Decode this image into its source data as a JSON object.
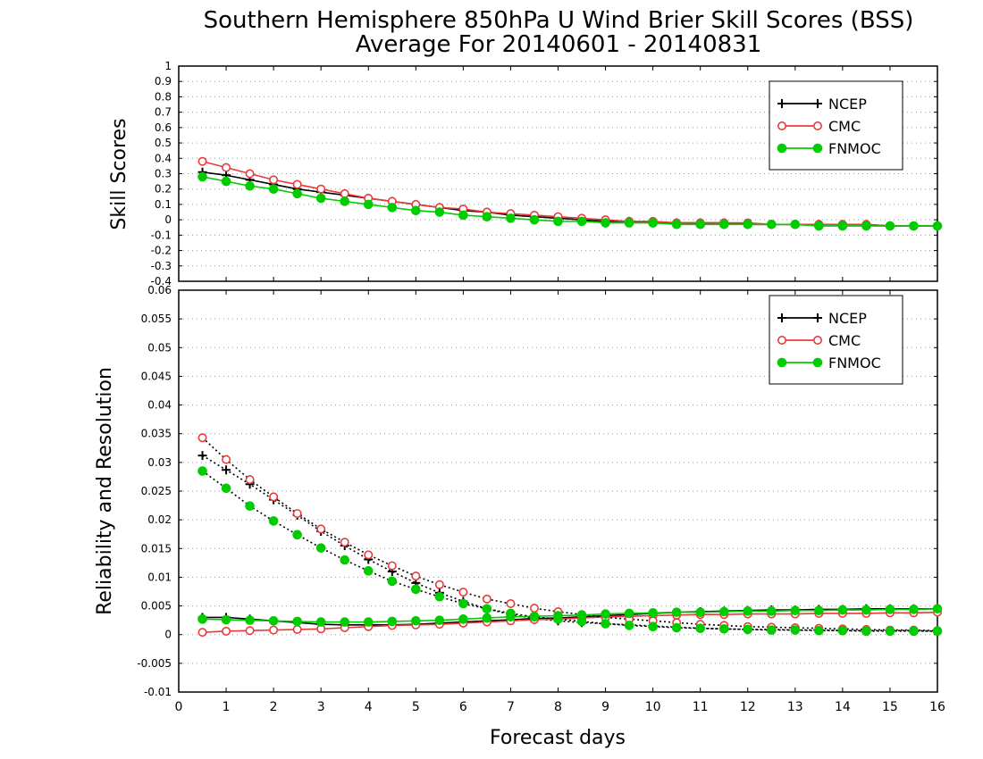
{
  "title_line1": "Southern Hemisphere 850hPa U Wind Brier Skill Scores (BSS)",
  "title_line2": "Average For 20140601 - 20140831",
  "colors": {
    "NCEP": "#000000",
    "CMC": "#e83a3a",
    "FNMOC": "#00cc00"
  },
  "chart_data": [
    {
      "type": "line",
      "panel": "top",
      "ylabel": "Skill Scores",
      "xlabel": "Forecast days",
      "xlim": [
        0,
        16
      ],
      "ylim": [
        -0.4,
        1
      ],
      "x_ticks": [
        "0",
        "1",
        "2",
        "3",
        "4",
        "5",
        "6",
        "7",
        "8",
        "9",
        "10",
        "11",
        "12",
        "13",
        "14",
        "15",
        "16"
      ],
      "y_ticks": [
        "1",
        "0.9",
        "0.8",
        "0.7",
        "0.6",
        "0.5",
        "0.4",
        "0.3",
        "0.2",
        "0.1",
        "0",
        "-0.1",
        "-0.2",
        "-0.3",
        "-0.4"
      ],
      "grid": true,
      "legend": [
        "NCEP",
        "CMC",
        "FNMOC"
      ],
      "legend_position": "top-right",
      "x": [
        0.5,
        1,
        1.5,
        2,
        2.5,
        3,
        3.5,
        4,
        4.5,
        5,
        5.5,
        6,
        6.5,
        7,
        7.5,
        8,
        8.5,
        9,
        9.5,
        10,
        10.5,
        11,
        11.5,
        12,
        12.5,
        13,
        13.5,
        14,
        14.5,
        15,
        15.5,
        16
      ],
      "series": [
        {
          "name": "NCEP",
          "marker": "plus",
          "line": "solid",
          "values": [
            0.31,
            0.29,
            0.26,
            0.23,
            0.2,
            0.18,
            0.16,
            0.14,
            0.12,
            0.1,
            0.08,
            0.06,
            0.05,
            0.03,
            0.02,
            0.01,
            0.0,
            -0.01,
            -0.01,
            -0.02,
            -0.02,
            -0.02,
            -0.02,
            -0.03,
            -0.03,
            -0.03,
            -0.03,
            -0.03,
            -0.03,
            -0.04,
            -0.04,
            -0.04
          ]
        },
        {
          "name": "CMC",
          "marker": "open-circle",
          "line": "solid",
          "values": [
            0.38,
            0.34,
            0.3,
            0.26,
            0.23,
            0.2,
            0.17,
            0.14,
            0.12,
            0.1,
            0.08,
            0.07,
            0.05,
            0.04,
            0.03,
            0.02,
            0.01,
            0.0,
            -0.01,
            -0.01,
            -0.02,
            -0.02,
            -0.02,
            -0.02,
            -0.03,
            -0.03,
            -0.03,
            -0.03,
            -0.03,
            -0.04,
            -0.04,
            -0.04
          ]
        },
        {
          "name": "FNMOC",
          "marker": "filled-circle",
          "line": "solid",
          "values": [
            0.28,
            0.25,
            0.22,
            0.2,
            0.17,
            0.14,
            0.12,
            0.1,
            0.08,
            0.06,
            0.05,
            0.03,
            0.02,
            0.01,
            0.0,
            -0.01,
            -0.01,
            -0.02,
            -0.02,
            -0.02,
            -0.03,
            -0.03,
            -0.03,
            -0.03,
            -0.03,
            -0.03,
            -0.04,
            -0.04,
            -0.04,
            -0.04,
            -0.04,
            -0.04
          ]
        }
      ]
    },
    {
      "type": "line",
      "panel": "bottom",
      "ylabel": "Reliability and Resolution",
      "xlabel": "Forecast days",
      "xlim": [
        0,
        16
      ],
      "ylim": [
        -0.01,
        0.06
      ],
      "x_ticks": [
        "0",
        "1",
        "2",
        "3",
        "4",
        "5",
        "6",
        "7",
        "8",
        "9",
        "10",
        "11",
        "12",
        "13",
        "14",
        "15",
        "16"
      ],
      "y_ticks": [
        "0.06",
        "0.055",
        "0.05",
        "0.045",
        "0.04",
        "0.035",
        "0.03",
        "0.025",
        "0.02",
        "0.015",
        "0.01",
        "0.005",
        "0",
        "-0.005",
        "-0.01"
      ],
      "grid": true,
      "legend": [
        "NCEP",
        "CMC",
        "FNMOC"
      ],
      "legend_position": "top-right",
      "x": [
        0.5,
        1,
        1.5,
        2,
        2.5,
        3,
        3.5,
        4,
        4.5,
        5,
        5.5,
        6,
        6.5,
        7,
        7.5,
        8,
        8.5,
        9,
        9.5,
        10,
        10.5,
        11,
        11.5,
        12,
        12.5,
        13,
        13.5,
        14,
        14.5,
        15,
        15.5,
        16
      ],
      "series": [
        {
          "name": "NCEP",
          "marker": "plus",
          "line": "solid",
          "values": [
            0.003,
            0.003,
            0.0027,
            0.0024,
            0.0021,
            0.0018,
            0.0017,
            0.0017,
            0.0017,
            0.0018,
            0.002,
            0.0022,
            0.0024,
            0.0026,
            0.0028,
            0.0029,
            0.0031,
            0.0033,
            0.0035,
            0.0037,
            0.0039,
            0.004,
            0.0041,
            0.0042,
            0.0043,
            0.0043,
            0.0044,
            0.0044,
            0.0045,
            0.0045,
            0.0045,
            0.0045
          ]
        },
        {
          "name": "NCEP",
          "marker": "plus",
          "line": "dotted",
          "values": [
            0.0312,
            0.0287,
            0.0262,
            0.0235,
            0.0208,
            0.018,
            0.0155,
            0.0131,
            0.011,
            0.009,
            0.0073,
            0.0058,
            0.0045,
            0.0035,
            0.0028,
            0.0024,
            0.0021,
            0.0019,
            0.0017,
            0.0015,
            0.0013,
            0.0011,
            0.001,
            0.0009,
            0.0009,
            0.0008,
            0.0008,
            0.0007,
            0.0007,
            0.0007,
            0.0007,
            0.0006
          ]
        },
        {
          "name": "CMC",
          "marker": "open-circle",
          "line": "solid",
          "values": [
            0.0004,
            0.0006,
            0.0007,
            0.0008,
            0.0009,
            0.001,
            0.0012,
            0.0014,
            0.0016,
            0.0017,
            0.0018,
            0.002,
            0.0022,
            0.0024,
            0.0026,
            0.0027,
            0.0029,
            0.0031,
            0.0032,
            0.0033,
            0.0034,
            0.0035,
            0.0035,
            0.0036,
            0.0036,
            0.0036,
            0.0037,
            0.0037,
            0.0037,
            0.0038,
            0.0038,
            0.0039
          ]
        },
        {
          "name": "CMC",
          "marker": "open-circle",
          "line": "dotted",
          "values": [
            0.0343,
            0.0305,
            0.027,
            0.024,
            0.0211,
            0.0184,
            0.0161,
            0.0139,
            0.012,
            0.0102,
            0.0087,
            0.0074,
            0.0062,
            0.0054,
            0.0046,
            0.004,
            0.0035,
            0.003,
            0.0027,
            0.0024,
            0.0021,
            0.0018,
            0.0016,
            0.0014,
            0.0013,
            0.0012,
            0.0011,
            0.001,
            0.0009,
            0.0008,
            0.0008,
            0.0007
          ]
        },
        {
          "name": "FNMOC",
          "marker": "filled-circle",
          "line": "solid",
          "values": [
            0.0027,
            0.0026,
            0.0025,
            0.0024,
            0.0023,
            0.0022,
            0.0022,
            0.0022,
            0.0023,
            0.0024,
            0.0025,
            0.0027,
            0.0029,
            0.0031,
            0.0032,
            0.0033,
            0.0034,
            0.0036,
            0.0037,
            0.0038,
            0.0039,
            0.0039,
            0.004,
            0.0041,
            0.0041,
            0.0042,
            0.0042,
            0.0043,
            0.0043,
            0.0044,
            0.0044,
            0.0045
          ]
        },
        {
          "name": "FNMOC",
          "marker": "filled-circle",
          "line": "dotted",
          "values": [
            0.0285,
            0.0255,
            0.0224,
            0.0198,
            0.0174,
            0.0151,
            0.013,
            0.0111,
            0.0093,
            0.0079,
            0.0066,
            0.0054,
            0.0045,
            0.0037,
            0.0031,
            0.0027,
            0.0023,
            0.0019,
            0.0016,
            0.0014,
            0.0012,
            0.0011,
            0.001,
            0.0009,
            0.0008,
            0.0008,
            0.0007,
            0.0007,
            0.0006,
            0.0006,
            0.0006,
            0.0006
          ]
        }
      ]
    }
  ]
}
